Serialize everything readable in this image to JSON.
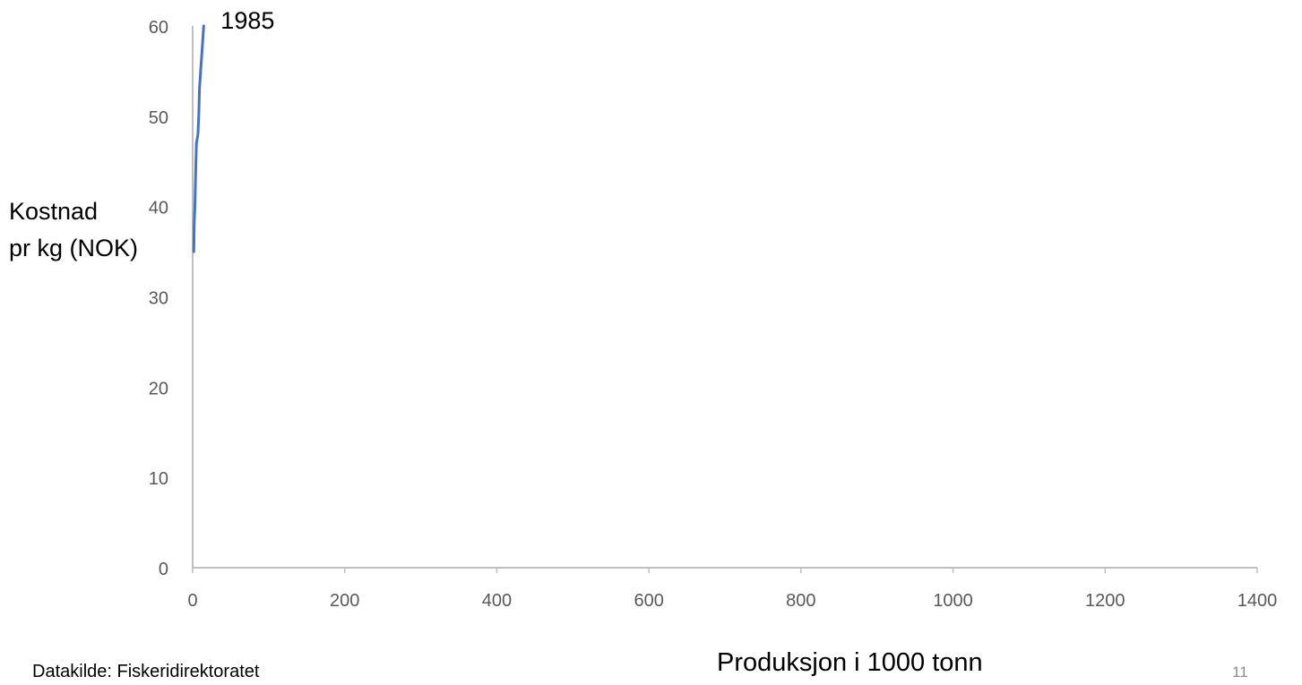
{
  "chart_data": {
    "type": "line",
    "title": "",
    "xlabel": "Produksjon i 1000 tonn",
    "ylabel_lines": [
      "Kostnad",
      "pr kg (NOK)"
    ],
    "xlim": [
      0,
      1400
    ],
    "ylim": [
      0,
      60
    ],
    "x_ticks": [
      0,
      200,
      400,
      600,
      800,
      1000,
      1200,
      1400
    ],
    "y_ticks": [
      0,
      10,
      20,
      30,
      40,
      50,
      60
    ],
    "grid": false,
    "legend": "none",
    "series": [
      {
        "color": "#4472C4",
        "points": [
          {
            "x": 1.5,
            "y": 35
          },
          {
            "x": 2,
            "y": 38
          },
          {
            "x": 3,
            "y": 40
          },
          {
            "x": 4,
            "y": 44
          },
          {
            "x": 5,
            "y": 47
          },
          {
            "x": 7,
            "y": 48
          },
          {
            "x": 8,
            "y": 50
          },
          {
            "x": 9,
            "y": 53
          },
          {
            "x": 10.5,
            "y": 55
          },
          {
            "x": 13,
            "y": 58
          },
          {
            "x": 14.5,
            "y": 60
          }
        ]
      }
    ],
    "annotations": [
      {
        "text": "1985",
        "x": 14.5,
        "y": 60
      }
    ]
  },
  "footer": {
    "source": "Datakilde: Fiskeridirektoratet",
    "page_number": "11"
  },
  "colors": {
    "axis": "#BFBFBF",
    "tick_text": "#595959",
    "series": "#4472C4"
  }
}
